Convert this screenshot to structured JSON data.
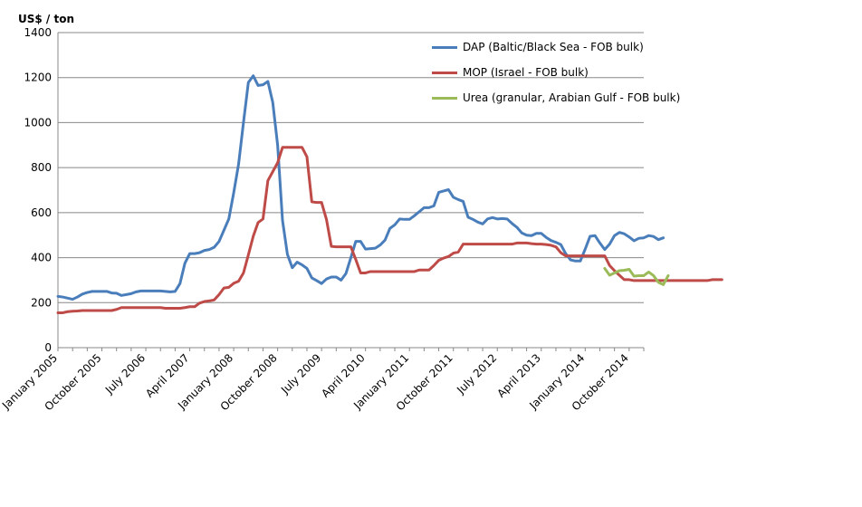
{
  "chart_data": {
    "type": "line",
    "ylabel": "US$ / ton",
    "ylim": [
      0,
      1400
    ],
    "yticks": [
      "0",
      "200",
      "400",
      "600",
      "800",
      "1000",
      "1200",
      "1400"
    ],
    "xtick_labels": [
      "January 2005",
      "October 2005",
      "July 2006",
      "April 2007",
      "January 2008",
      "October 2008",
      "July 2009",
      "April 2010",
      "January 2011",
      "October 2011",
      "July 2012",
      "April 2013",
      "January 2014",
      "October 2014"
    ],
    "xtick_indices": [
      0,
      9,
      18,
      27,
      36,
      45,
      54,
      63,
      72,
      81,
      90,
      99,
      108,
      117
    ],
    "grid": "horizontal",
    "legend_position": "top-right",
    "x_start": "January 2005",
    "x_frequency": "monthly",
    "series": [
      {
        "name": "DAP (Baltic/Black Sea - FOB bulk)",
        "color": "#4a7ebb",
        "start_index": 0,
        "values": [
          228,
          225,
          220,
          215,
          225,
          238,
          245,
          250,
          250,
          250,
          250,
          243,
          242,
          232,
          236,
          240,
          248,
          252,
          252,
          252,
          252,
          252,
          250,
          248,
          250,
          285,
          375,
          418,
          418,
          422,
          432,
          436,
          446,
          472,
          522,
          572,
          688,
          815,
          1000,
          1178,
          1208,
          1165,
          1168,
          1183,
          1090,
          900,
          565,
          415,
          355,
          380,
          368,
          352,
          310,
          298,
          285,
          305,
          314,
          314,
          300,
          330,
          400,
          472,
          472,
          438,
          440,
          442,
          456,
          478,
          530,
          546,
          572,
          570,
          570,
          586,
          604,
          622,
          622,
          630,
          690,
          696,
          702,
          668,
          658,
          650,
          580,
          570,
          558,
          550,
          572,
          578,
          572,
          574,
          572,
          552,
          535,
          510,
          500,
          498,
          508,
          508,
          490,
          476,
          468,
          458,
          418,
          390,
          385,
          385,
          438,
          495,
          498,
          465,
          436,
          460,
          498,
          512,
          506,
          492,
          475,
          486,
          488,
          498,
          494,
          480,
          488
        ]
      },
      {
        "name": "MOP (Israel - FOB bulk)",
        "color": "#be4b48",
        "start_index": 0,
        "values": [
          155,
          155,
          160,
          162,
          163,
          165,
          165,
          165,
          165,
          165,
          165,
          165,
          170,
          178,
          178,
          178,
          178,
          178,
          178,
          178,
          178,
          178,
          175,
          175,
          175,
          175,
          178,
          182,
          182,
          198,
          205,
          208,
          212,
          236,
          265,
          268,
          286,
          295,
          332,
          412,
          495,
          556,
          572,
          742,
          782,
          822,
          890,
          890,
          890,
          890,
          890,
          848,
          648,
          645,
          645,
          570,
          450,
          448,
          448,
          448,
          448,
          392,
          332,
          332,
          338,
          338,
          338,
          338,
          338,
          338,
          338,
          338,
          338,
          338,
          345,
          345,
          345,
          365,
          388,
          398,
          405,
          420,
          425,
          460,
          460,
          460,
          460,
          460,
          460,
          460,
          460,
          460,
          460,
          460,
          465,
          465,
          465,
          462,
          460,
          460,
          458,
          455,
          448,
          422,
          408,
          408,
          408,
          408,
          408,
          408,
          408,
          408,
          408,
          365,
          342,
          322,
          302,
          302,
          298,
          298,
          298,
          298,
          298,
          298,
          298,
          298,
          298,
          298,
          298,
          298,
          298,
          298,
          298,
          298,
          302,
          302,
          302
        ]
      },
      {
        "name": "Urea (granular, Arabian Gulf - FOB bulk)",
        "color": "#9bbb59",
        "start_index": 112,
        "values": [
          352,
          322,
          332,
          342,
          344,
          348,
          318,
          320,
          320,
          336,
          320,
          290,
          280,
          320
        ]
      }
    ]
  }
}
